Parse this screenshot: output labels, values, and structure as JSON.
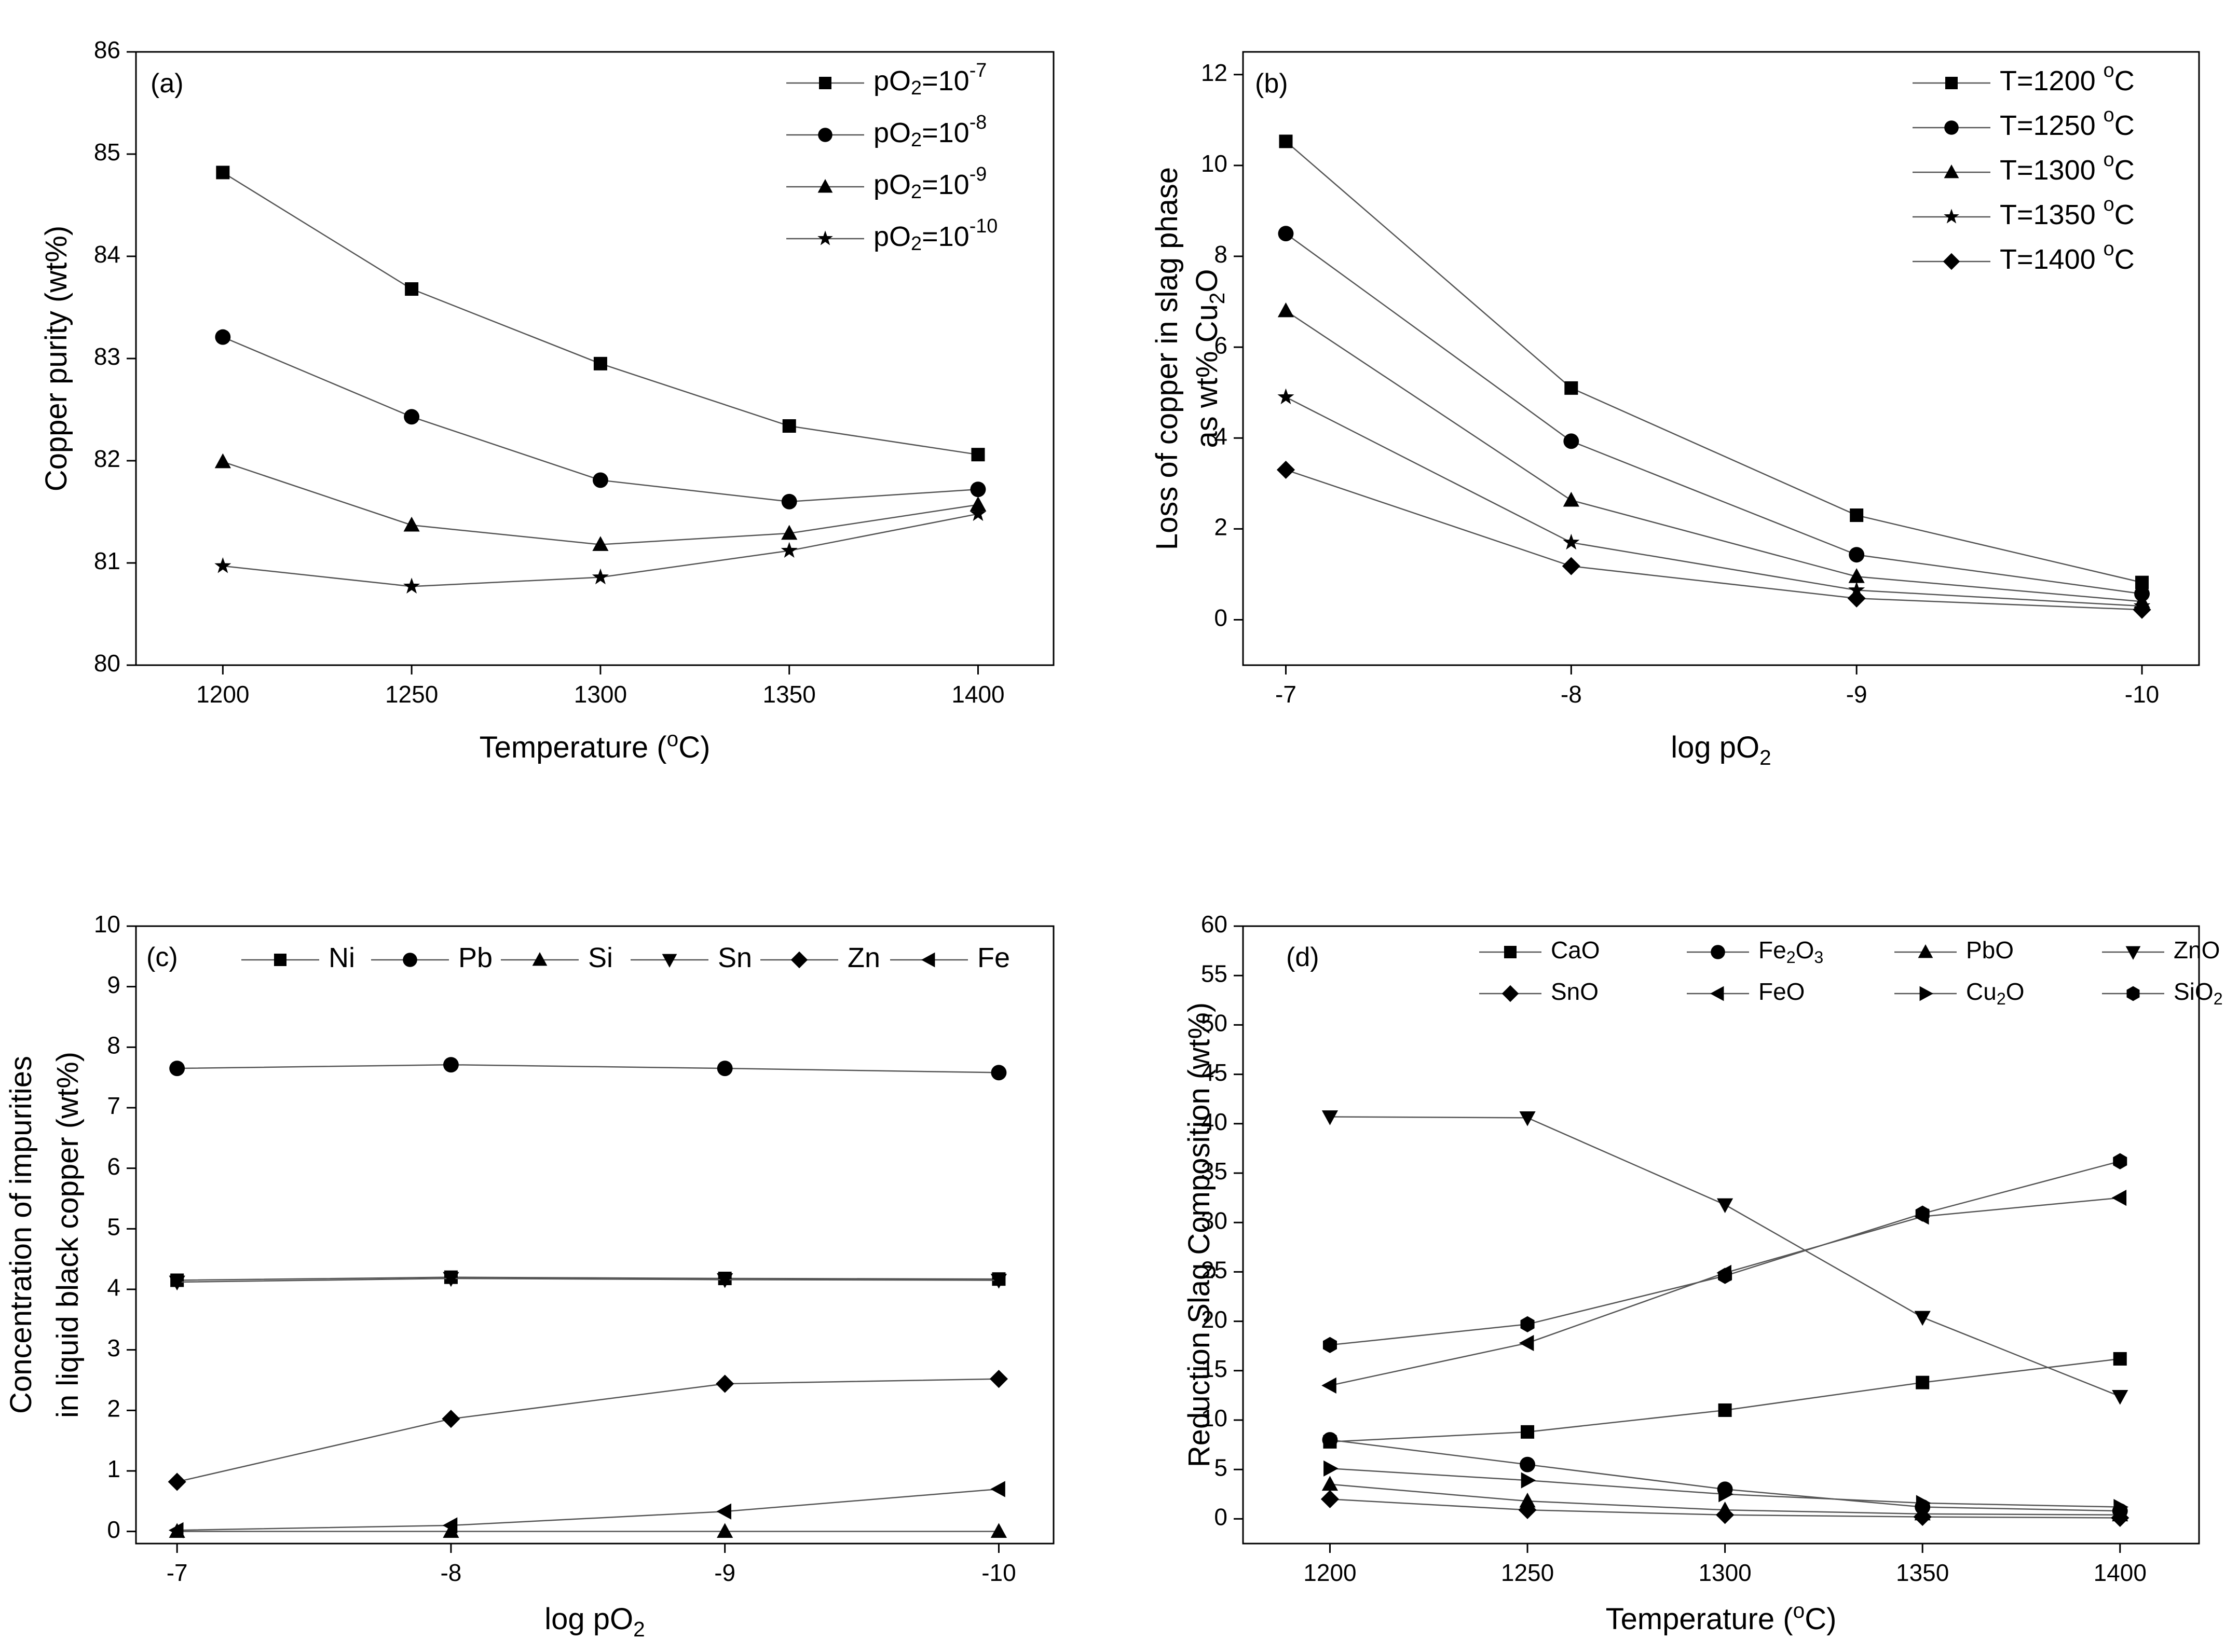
{
  "charts": [
    {
      "panel": "(a)",
      "type": "line",
      "xlabel": "Temperature (oC)",
      "ylabel": "Copper purity (wt%)",
      "x": [
        1200,
        1250,
        1300,
        1350,
        1400
      ],
      "xticks": [
        "1200",
        "1250",
        "1300",
        "1350",
        "1400"
      ],
      "xlim": [
        1177,
        1420
      ],
      "ylim": [
        80,
        86
      ],
      "yticks": [
        "80",
        "81",
        "82",
        "83",
        "84",
        "85",
        "86"
      ],
      "legend_position": "top-right",
      "legend_layout": "column",
      "series": [
        {
          "name": "pO2=10-7",
          "legend": {
            "base": "pO",
            "sub": "2",
            "mid": "=10",
            "sup": "-7"
          },
          "marker": "square",
          "values": [
            84.82,
            83.68,
            82.95,
            82.34,
            82.06
          ]
        },
        {
          "name": "pO2=10-8",
          "legend": {
            "base": "pO",
            "sub": "2",
            "mid": "=10",
            "sup": "-8"
          },
          "marker": "circle",
          "values": [
            83.21,
            82.43,
            81.81,
            81.6,
            81.72
          ]
        },
        {
          "name": "pO2=10-9",
          "legend": {
            "base": "pO",
            "sub": "2",
            "mid": "=10",
            "sup": "-9"
          },
          "marker": "triangle-up",
          "values": [
            81.99,
            81.37,
            81.18,
            81.29,
            81.57
          ]
        },
        {
          "name": "pO2=10-10",
          "legend": {
            "base": "pO",
            "sub": "2",
            "mid": "=10",
            "sup": "-10"
          },
          "marker": "star",
          "values": [
            80.97,
            80.77,
            80.86,
            81.12,
            81.48
          ]
        }
      ]
    },
    {
      "panel": "(b)",
      "type": "line",
      "xlabel": "log pO2",
      "ylabel_line1": "Loss of copper in slag phase",
      "ylabel_line2": "as wt% Cu2O",
      "x": [
        -7,
        -8,
        -9,
        -10
      ],
      "xticks": [
        "-7",
        "-8",
        "-9",
        "-10"
      ],
      "xlim": [
        -6.85,
        -10.2
      ],
      "ylim": [
        -1,
        12.5
      ],
      "yticks": [
        "0",
        "2",
        "4",
        "6",
        "8",
        "10",
        "12"
      ],
      "legend_position": "top-right",
      "legend_layout": "column",
      "series": [
        {
          "name": "T=1200 oC",
          "legend": {
            "base": "T=1200 ",
            "sup": "o",
            "tail": "C"
          },
          "marker": "square",
          "values": [
            10.53,
            5.1,
            2.3,
            0.82
          ]
        },
        {
          "name": "T=1250 oC",
          "legend": {
            "base": "T=1250 ",
            "sup": "o",
            "tail": "C"
          },
          "marker": "circle",
          "values": [
            8.5,
            3.93,
            1.43,
            0.57
          ]
        },
        {
          "name": "T=1300 oC",
          "legend": {
            "base": "T=1300 ",
            "sup": "o",
            "tail": "C"
          },
          "marker": "triangle-up",
          "values": [
            6.8,
            2.63,
            0.95,
            0.4
          ]
        },
        {
          "name": "T=1350 oC",
          "legend": {
            "base": "T=1350 ",
            "sup": "o",
            "tail": "C"
          },
          "marker": "star",
          "values": [
            4.9,
            1.7,
            0.65,
            0.3
          ]
        },
        {
          "name": "T=1400 oC",
          "legend": {
            "base": "T=1400 ",
            "sup": "o",
            "tail": "C"
          },
          "marker": "diamond",
          "values": [
            3.3,
            1.18,
            0.47,
            0.22
          ]
        }
      ]
    },
    {
      "panel": "(c)",
      "type": "line",
      "xlabel": "log pO2",
      "ylabel_line1": "Concentration of impurities",
      "ylabel_line2": "in liquid black copper (wt%)",
      "x": [
        -7,
        -8,
        -9,
        -10
      ],
      "xticks": [
        "-7",
        "-8",
        "-9",
        "-10"
      ],
      "xlim": [
        -6.85,
        -10.2
      ],
      "ylim": [
        -0.2,
        10
      ],
      "yticks": [
        "0",
        "1",
        "2",
        "3",
        "4",
        "5",
        "6",
        "7",
        "8",
        "9",
        "10"
      ],
      "legend_position": "top",
      "legend_layout": "row",
      "series": [
        {
          "name": "Ni",
          "legend": {
            "base": "Ni"
          },
          "marker": "square",
          "values": [
            4.15,
            4.2,
            4.18,
            4.17
          ]
        },
        {
          "name": "Pb",
          "legend": {
            "base": "Pb"
          },
          "marker": "circle",
          "values": [
            7.65,
            7.71,
            7.65,
            7.58
          ]
        },
        {
          "name": "Si",
          "legend": {
            "base": "Si"
          },
          "marker": "triangle-up",
          "values": [
            0.0,
            0.0,
            0.0,
            0.0
          ]
        },
        {
          "name": "Sn",
          "legend": {
            "base": "Sn"
          },
          "marker": "triangle-down",
          "values": [
            4.12,
            4.18,
            4.16,
            4.15
          ]
        },
        {
          "name": "Zn",
          "legend": {
            "base": "Zn"
          },
          "marker": "diamond",
          "values": [
            0.82,
            1.86,
            2.44,
            2.52
          ]
        },
        {
          "name": "Fe",
          "legend": {
            "base": "Fe"
          },
          "marker": "triangle-left",
          "values": [
            0.02,
            0.1,
            0.33,
            0.7
          ]
        }
      ]
    },
    {
      "panel": "(d)",
      "type": "line",
      "xlabel": "Temperature (oC)",
      "ylabel": "Reduction Slag Composition (wt%)",
      "x": [
        1200,
        1250,
        1300,
        1350,
        1400
      ],
      "xticks": [
        "1200",
        "1250",
        "1300",
        "1350",
        "1400"
      ],
      "xlim": [
        1178,
        1420
      ],
      "ylim": [
        -2.5,
        60
      ],
      "yticks": [
        "0",
        "5",
        "10",
        "15",
        "20",
        "25",
        "30",
        "35",
        "40",
        "45",
        "50",
        "55",
        "60"
      ],
      "legend_position": "top",
      "legend_layout": "grid-2x4",
      "series": [
        {
          "name": "CaO",
          "legend": {
            "base": "CaO"
          },
          "marker": "square",
          "values": [
            7.8,
            8.8,
            11.0,
            13.8,
            16.2
          ]
        },
        {
          "name": "Fe2O3",
          "legend": {
            "base": "Fe",
            "sub": "2",
            "mid": "O",
            "sub2": "3"
          },
          "marker": "circle",
          "values": [
            8.0,
            5.5,
            3.0,
            1.2,
            0.8
          ]
        },
        {
          "name": "PbO",
          "legend": {
            "base": "PbO"
          },
          "marker": "triangle-up",
          "values": [
            3.5,
            1.8,
            0.9,
            0.5,
            0.4
          ]
        },
        {
          "name": "ZnO",
          "legend": {
            "base": "ZnO"
          },
          "marker": "triangle-down",
          "values": [
            40.7,
            40.6,
            31.8,
            20.4,
            12.4
          ]
        },
        {
          "name": "SnO",
          "legend": {
            "base": "SnO"
          },
          "marker": "diamond",
          "values": [
            2.0,
            0.9,
            0.4,
            0.2,
            0.1
          ]
        },
        {
          "name": "FeO",
          "legend": {
            "base": "FeO"
          },
          "marker": "triangle-left",
          "values": [
            13.5,
            17.8,
            24.9,
            30.6,
            32.5
          ]
        },
        {
          "name": "Cu2O",
          "legend": {
            "base": "Cu",
            "sub": "2",
            "mid": "O"
          },
          "marker": "triangle-right",
          "values": [
            5.1,
            3.9,
            2.5,
            1.6,
            1.2
          ]
        },
        {
          "name": "SiO2",
          "legend": {
            "base": "SiO",
            "sub": "2"
          },
          "marker": "hexagon",
          "values": [
            17.6,
            19.7,
            24.6,
            30.9,
            36.2
          ]
        }
      ]
    }
  ]
}
